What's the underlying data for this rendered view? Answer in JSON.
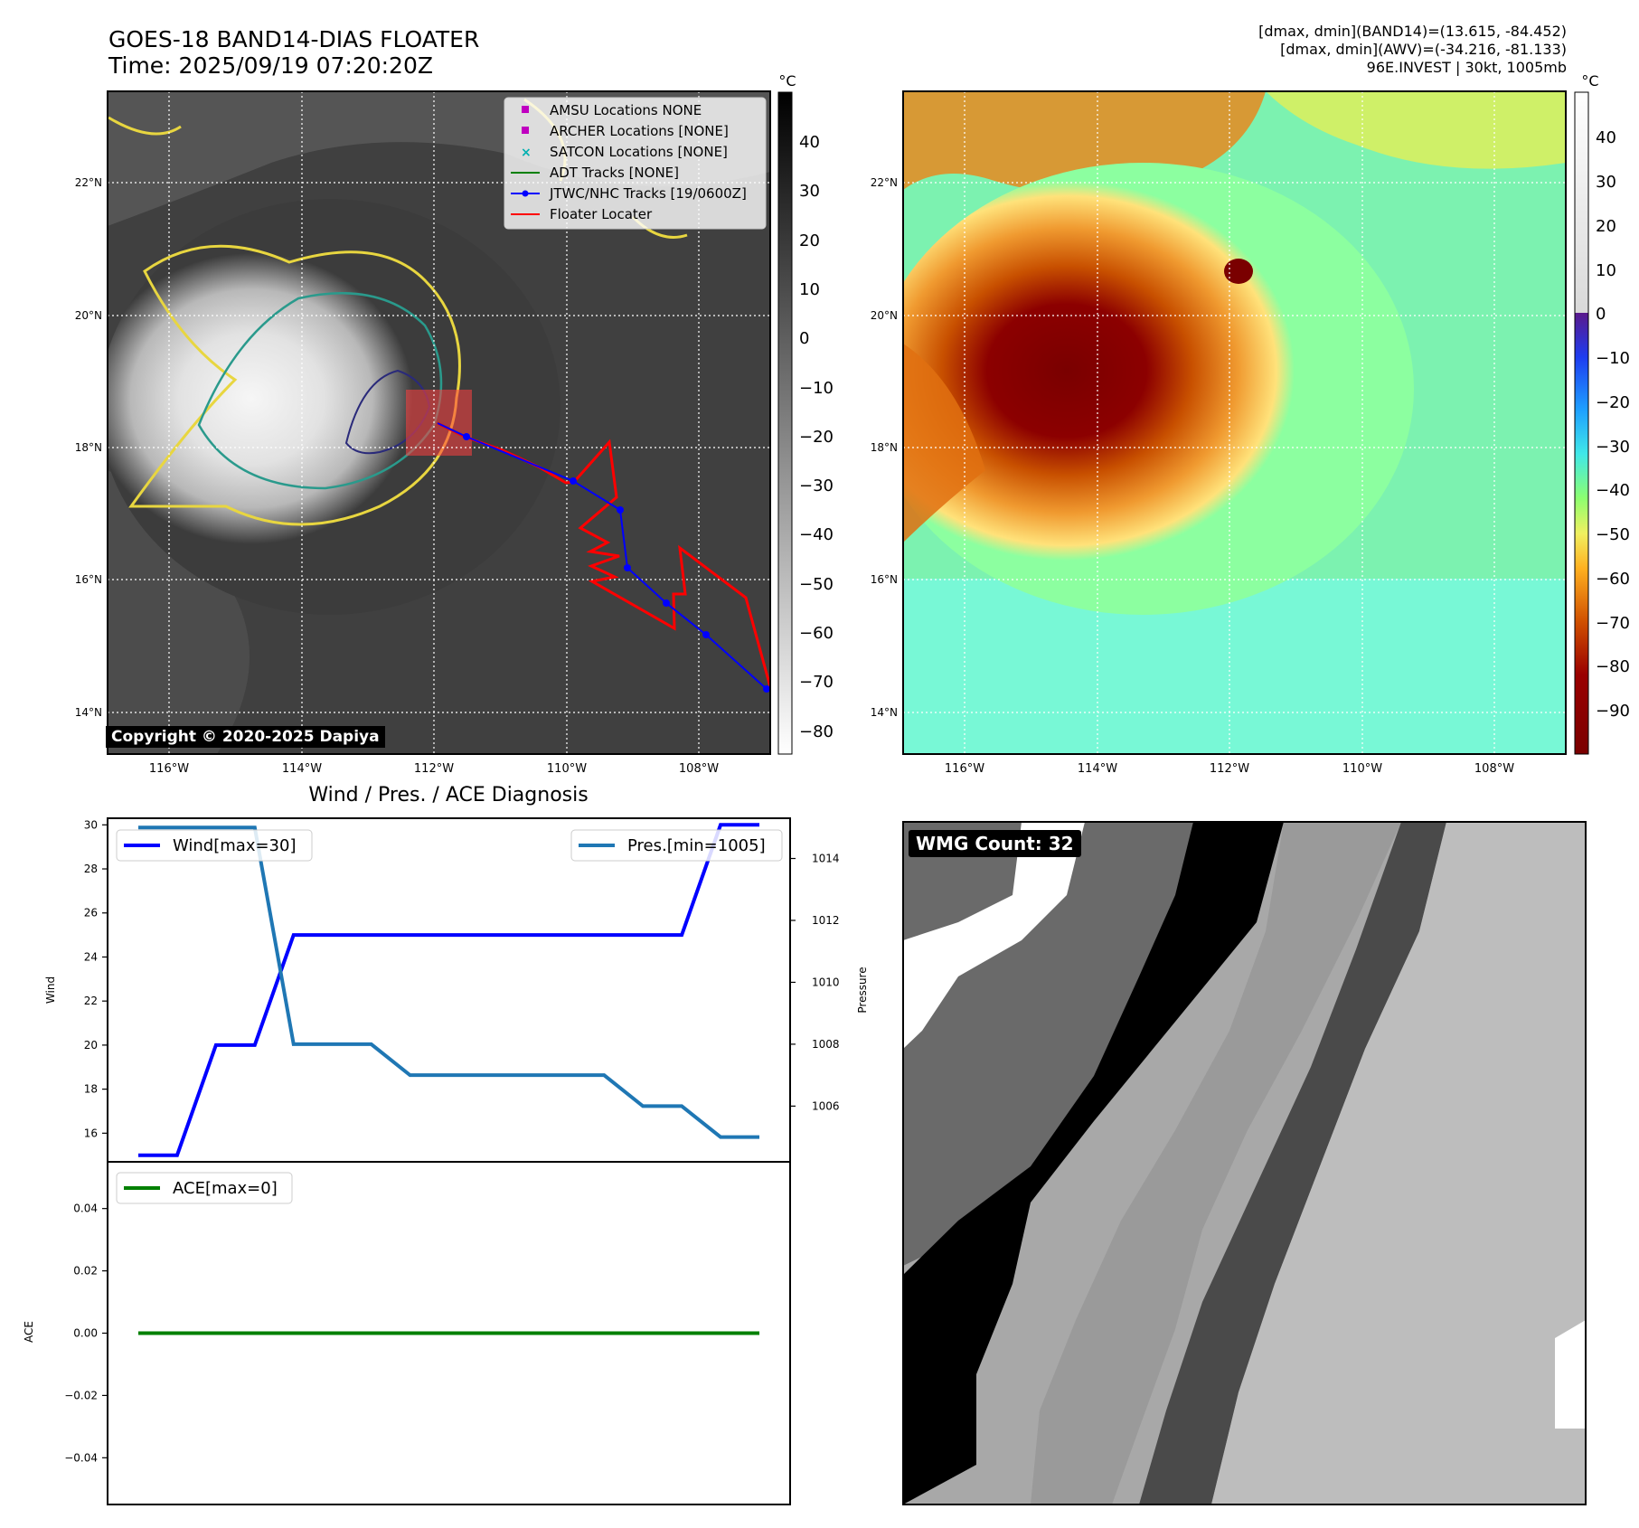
{
  "header": {
    "title_line1": "GOES-18 BAND14-DIAS FLOATER",
    "title_line2": "Time: 2025/09/19 07:20:20Z",
    "info_line1": "[dmax, dmin](BAND14)=(13.615, -84.452)",
    "info_line2": "[dmax, dmin](AWV)=(-34.216, -81.133)",
    "info_line3": "96E.INVEST | 30kt, 1005mb"
  },
  "map": {
    "lat_labels": [
      "22°N",
      "20°N",
      "18°N",
      "16°N",
      "14°N"
    ],
    "lon_labels": [
      "116°W",
      "114°W",
      "112°W",
      "110°W",
      "108°W"
    ],
    "unit": "°C",
    "copyright": "Copyright © 2020-2025 Dapiya",
    "legend": [
      {
        "label": "AMSU Locations NONE",
        "marker": "square",
        "color": "#c000c0"
      },
      {
        "label": "ARCHER Locations [NONE]",
        "marker": "square",
        "color": "#c000c0"
      },
      {
        "label": "SATCON Locations [NONE]",
        "marker": "x",
        "color": "#00b0b0"
      },
      {
        "label": "ADT Tracks [NONE]",
        "marker": "line",
        "color": "#008000"
      },
      {
        "label": "JTWC/NHC Tracks [19/0600Z]",
        "marker": "line-dot",
        "color": "#0000ff"
      },
      {
        "label": "Floater Locater",
        "marker": "line",
        "color": "#ff0000"
      }
    ],
    "colorbar_gray_ticks": [
      "40",
      "30",
      "20",
      "10",
      "0",
      "−10",
      "−20",
      "−30",
      "−40",
      "−50",
      "−60",
      "−70",
      "−80"
    ],
    "colorbar_color_ticks": [
      "40",
      "30",
      "20",
      "10",
      "0",
      "−10",
      "−20",
      "−30",
      "−40",
      "−50",
      "−60",
      "−70",
      "−80",
      "−90"
    ]
  },
  "chart_data": [
    {
      "type": "line",
      "title": "Wind / Pres. / ACE Diagnosis",
      "ylabel": "Wind",
      "y2label": "Pressure",
      "ylim": [
        14.7,
        30.3
      ],
      "y2lim": [
        1004.2,
        1015.3
      ],
      "yticks": [
        "30",
        "28",
        "26",
        "24",
        "22",
        "20",
        "18",
        "16"
      ],
      "y2ticks": [
        "1014",
        "1012",
        "1010",
        "1008",
        "1006"
      ],
      "series": [
        {
          "name": "Wind[max=30]",
          "color": "#0000ff",
          "axis": "left",
          "values": [
            15,
            15,
            20,
            20,
            25,
            25,
            25,
            25,
            25,
            25,
            25,
            25,
            25,
            25,
            25,
            30,
            30
          ]
        },
        {
          "name": "Pres.[min=1005]",
          "color": "#1f77b4",
          "axis": "right",
          "values": [
            1015,
            1015,
            1015,
            1015,
            1008,
            1008,
            1008,
            1007,
            1007,
            1007,
            1007,
            1007,
            1007,
            1006,
            1006,
            1005,
            1005
          ]
        }
      ]
    },
    {
      "type": "line",
      "ylabel": "ACE",
      "ylim": [
        -0.055,
        0.055
      ],
      "yticks": [
        "0.04",
        "0.02",
        "0.00",
        "−0.02",
        "−0.04"
      ],
      "series": [
        {
          "name": "ACE[max=0]",
          "color": "#008000",
          "values": [
            0,
            0,
            0,
            0,
            0,
            0,
            0,
            0,
            0,
            0,
            0,
            0,
            0,
            0,
            0,
            0,
            0
          ]
        }
      ]
    }
  ],
  "wmg": {
    "label": "WMG Count: 32"
  }
}
